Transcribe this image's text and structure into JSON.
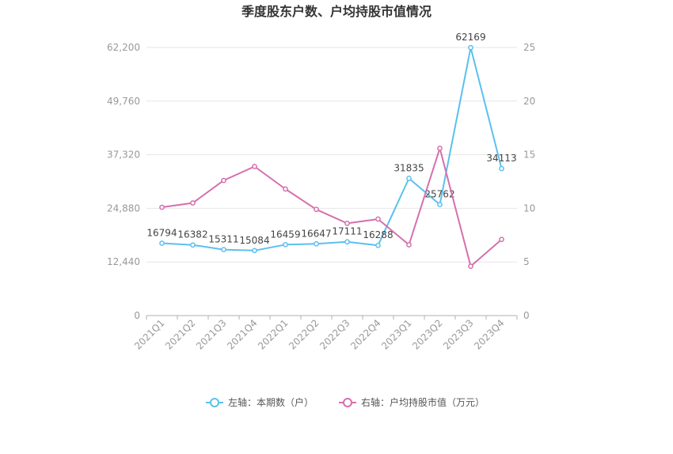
{
  "chart_data": {
    "type": "line",
    "title": "季度股东户数、户均持股市值情况",
    "categories": [
      "2021Q1",
      "2021Q2",
      "2021Q3",
      "2021Q4",
      "2022Q1",
      "2022Q2",
      "2022Q3",
      "2022Q4",
      "2023Q1",
      "2023Q2",
      "2023Q3",
      "2023Q4"
    ],
    "left_axis": {
      "min": 0,
      "max": 62200,
      "ticks": [
        "0",
        "12,440",
        "24,880",
        "37,320",
        "49,760",
        "62,200"
      ]
    },
    "right_axis": {
      "min": 0,
      "max": 25,
      "ticks": [
        "0",
        "5",
        "10",
        "15",
        "20",
        "25"
      ]
    },
    "series": [
      {
        "name": "左轴：本期数（户）",
        "axis": "left",
        "color": "#5bc0ee",
        "values": [
          16794,
          16382,
          15311,
          15084,
          16459,
          16647,
          17111,
          16288,
          31835,
          25762,
          62169,
          34113
        ],
        "labels": [
          "16794",
          "16382",
          "15311",
          "15084",
          "16459",
          "16647",
          "17111",
          "16288",
          "31835",
          "25762",
          "62169",
          "34113"
        ]
      },
      {
        "name": "右轴：户均持股市值（万元）",
        "axis": "right",
        "color": "#d56fae",
        "values": [
          10.1,
          10.5,
          12.6,
          13.9,
          11.8,
          9.9,
          8.6,
          9.0,
          6.6,
          15.6,
          4.6,
          7.1
        ]
      }
    ],
    "grid": true,
    "legend": "bottom"
  }
}
